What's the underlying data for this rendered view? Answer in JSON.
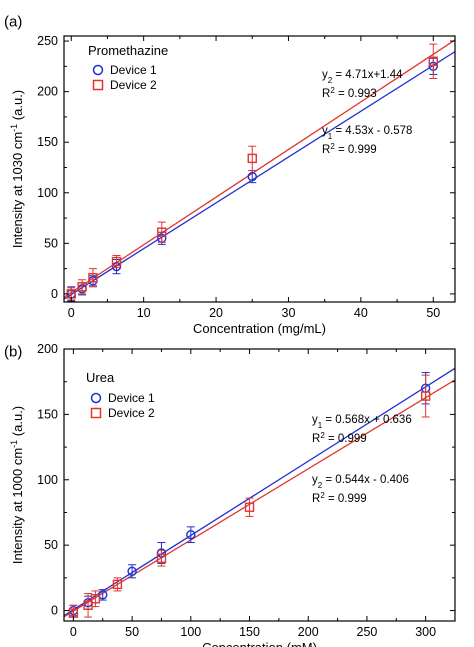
{
  "colors": {
    "device1": "#1f2fd1",
    "device2": "#e0362e",
    "axis": "#000000"
  },
  "chart_data": [
    {
      "type": "scatter",
      "panel_label": "(a)",
      "title": "Promethazine",
      "xlabel": "Concentration (mg/mL)",
      "ylabel_main": "Intensity at 1030 cm",
      "ylabel_sup": "-1",
      "ylabel_tail": " (a.u.)",
      "xlim": [
        -1,
        53
      ],
      "ylim": [
        -8,
        255
      ],
      "xticks": [
        0,
        10,
        20,
        30,
        40,
        50
      ],
      "yticks": [
        0,
        50,
        100,
        150,
        200,
        250
      ],
      "xtick_labels": [
        "0",
        "10",
        "20",
        "30",
        "40",
        "50"
      ],
      "ytick_labels": [
        "0",
        "50",
        "100",
        "150",
        "200",
        "250"
      ],
      "legend": "top-left",
      "series": [
        {
          "name": "Device 1",
          "marker": "circle",
          "color": "#1f2fd1",
          "x": [
            0,
            1.5,
            3,
            6.25,
            12.5,
            25,
            50
          ],
          "y": [
            0,
            5,
            13,
            27,
            55,
            116,
            225
          ],
          "err": [
            7,
            6,
            5,
            7,
            6,
            6,
            8
          ],
          "fit_slope": 4.53,
          "fit_intercept": -0.578
        },
        {
          "name": "Device 2",
          "marker": "square",
          "color": "#e0362e",
          "x": [
            0,
            1.5,
            3,
            6.25,
            12.5,
            25,
            50
          ],
          "y": [
            0,
            7,
            16,
            32,
            61,
            134,
            230
          ],
          "err": [
            6,
            7,
            9,
            6,
            10,
            12,
            17
          ],
          "fit_slope": 4.71,
          "fit_intercept": 1.44
        }
      ],
      "equations": [
        {
          "label": "y",
          "sub": "2",
          "expr": " = 4.71x+1.44",
          "r2": " = 0.993"
        },
        {
          "label": "y",
          "sub": "1",
          "expr": " = 4.53x - 0.578",
          "r2": " = 0.999"
        }
      ]
    },
    {
      "type": "scatter",
      "panel_label": "(b)",
      "title": "Urea",
      "xlabel": "Concentration (mM)",
      "ylabel_main": "Intensity at 1000 cm",
      "ylabel_sup": "-1",
      "ylabel_tail": " (a.u.)",
      "xlim": [
        -8,
        325
      ],
      "ylim": [
        -8,
        200
      ],
      "xticks": [
        0,
        50,
        100,
        150,
        200,
        250,
        300
      ],
      "yticks": [
        0,
        50,
        100,
        150,
        200
      ],
      "xtick_labels": [
        "0",
        "50",
        "100",
        "150",
        "200",
        "250",
        "300"
      ],
      "ytick_labels": [
        "0",
        "50",
        "100",
        "150",
        "200"
      ],
      "legend": "top-left",
      "series": [
        {
          "name": "Device 1",
          "marker": "circle",
          "color": "#1f2fd1",
          "x": [
            0,
            12.5,
            25,
            50,
            75,
            100,
            300
          ],
          "y": [
            0,
            6,
            12,
            30,
            44,
            58,
            170
          ],
          "err": [
            4,
            5,
            4,
            5,
            8,
            6,
            12
          ],
          "fit_slope": 0.568,
          "fit_intercept": 0.636
        },
        {
          "name": "Device 2",
          "marker": "square",
          "color": "#e0362e",
          "x": [
            0,
            12.5,
            18.75,
            37.5,
            75,
            150,
            300
          ],
          "y": [
            -2,
            4,
            9,
            20,
            40,
            79,
            164
          ],
          "err": [
            6,
            9,
            6,
            5,
            6,
            7,
            16
          ],
          "fit_slope": 0.544,
          "fit_intercept": -0.406
        }
      ],
      "equations": [
        {
          "label": "y",
          "sub": "1",
          "expr": " = 0.568x + 0.636",
          "r2": " = 0.999"
        },
        {
          "label": "y",
          "sub": "2",
          "expr": " = 0.544x - 0.406",
          "r2": " = 0.999"
        }
      ]
    }
  ]
}
